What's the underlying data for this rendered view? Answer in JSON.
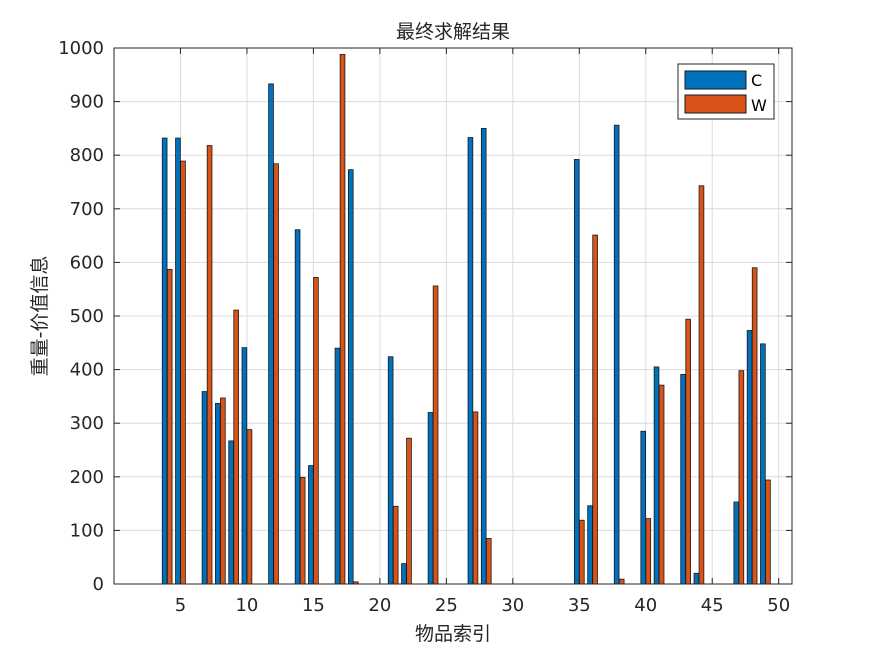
{
  "chart_data": {
    "type": "bar",
    "title": "最终求解结果",
    "xlabel": "物品索引",
    "ylabel": "重量-价值信息",
    "xlim": [
      0,
      51
    ],
    "ylim": [
      0,
      1000
    ],
    "xticks": [
      5,
      10,
      15,
      20,
      25,
      30,
      35,
      40,
      45,
      50
    ],
    "yticks": [
      0,
      100,
      200,
      300,
      400,
      500,
      600,
      700,
      800,
      900,
      1000
    ],
    "grid": true,
    "legend_position": "top-right",
    "x": [
      1,
      2,
      3,
      4,
      5,
      6,
      7,
      8,
      9,
      10,
      11,
      12,
      13,
      14,
      15,
      16,
      17,
      18,
      19,
      20,
      21,
      22,
      23,
      24,
      25,
      26,
      27,
      28,
      29,
      30,
      31,
      32,
      33,
      34,
      35,
      36,
      37,
      38,
      39,
      40,
      41,
      42,
      43,
      44,
      45,
      46,
      47,
      48,
      49,
      50
    ],
    "series": [
      {
        "name": "C",
        "color": "#0072BD",
        "values": [
          0,
          0,
          0,
          832,
          832,
          0,
          359,
          337,
          267,
          441,
          0,
          933,
          0,
          661,
          221,
          0,
          440,
          773,
          0,
          0,
          424,
          38,
          0,
          320,
          0,
          0,
          833,
          850,
          0,
          0,
          0,
          0,
          0,
          0,
          792,
          146,
          0,
          856,
          0,
          285,
          405,
          0,
          391,
          20,
          0,
          0,
          153,
          473,
          448,
          0
        ]
      },
      {
        "name": "W",
        "color": "#D95319",
        "values": [
          0,
          0,
          0,
          587,
          789,
          0,
          818,
          347,
          511,
          288,
          0,
          784,
          0,
          199,
          572,
          0,
          988,
          4,
          0,
          0,
          145,
          272,
          0,
          556,
          0,
          0,
          321,
          85,
          0,
          0,
          0,
          0,
          0,
          0,
          119,
          651,
          0,
          9,
          0,
          122,
          371,
          0,
          494,
          743,
          0,
          0,
          398,
          590,
          194,
          0
        ]
      }
    ]
  }
}
